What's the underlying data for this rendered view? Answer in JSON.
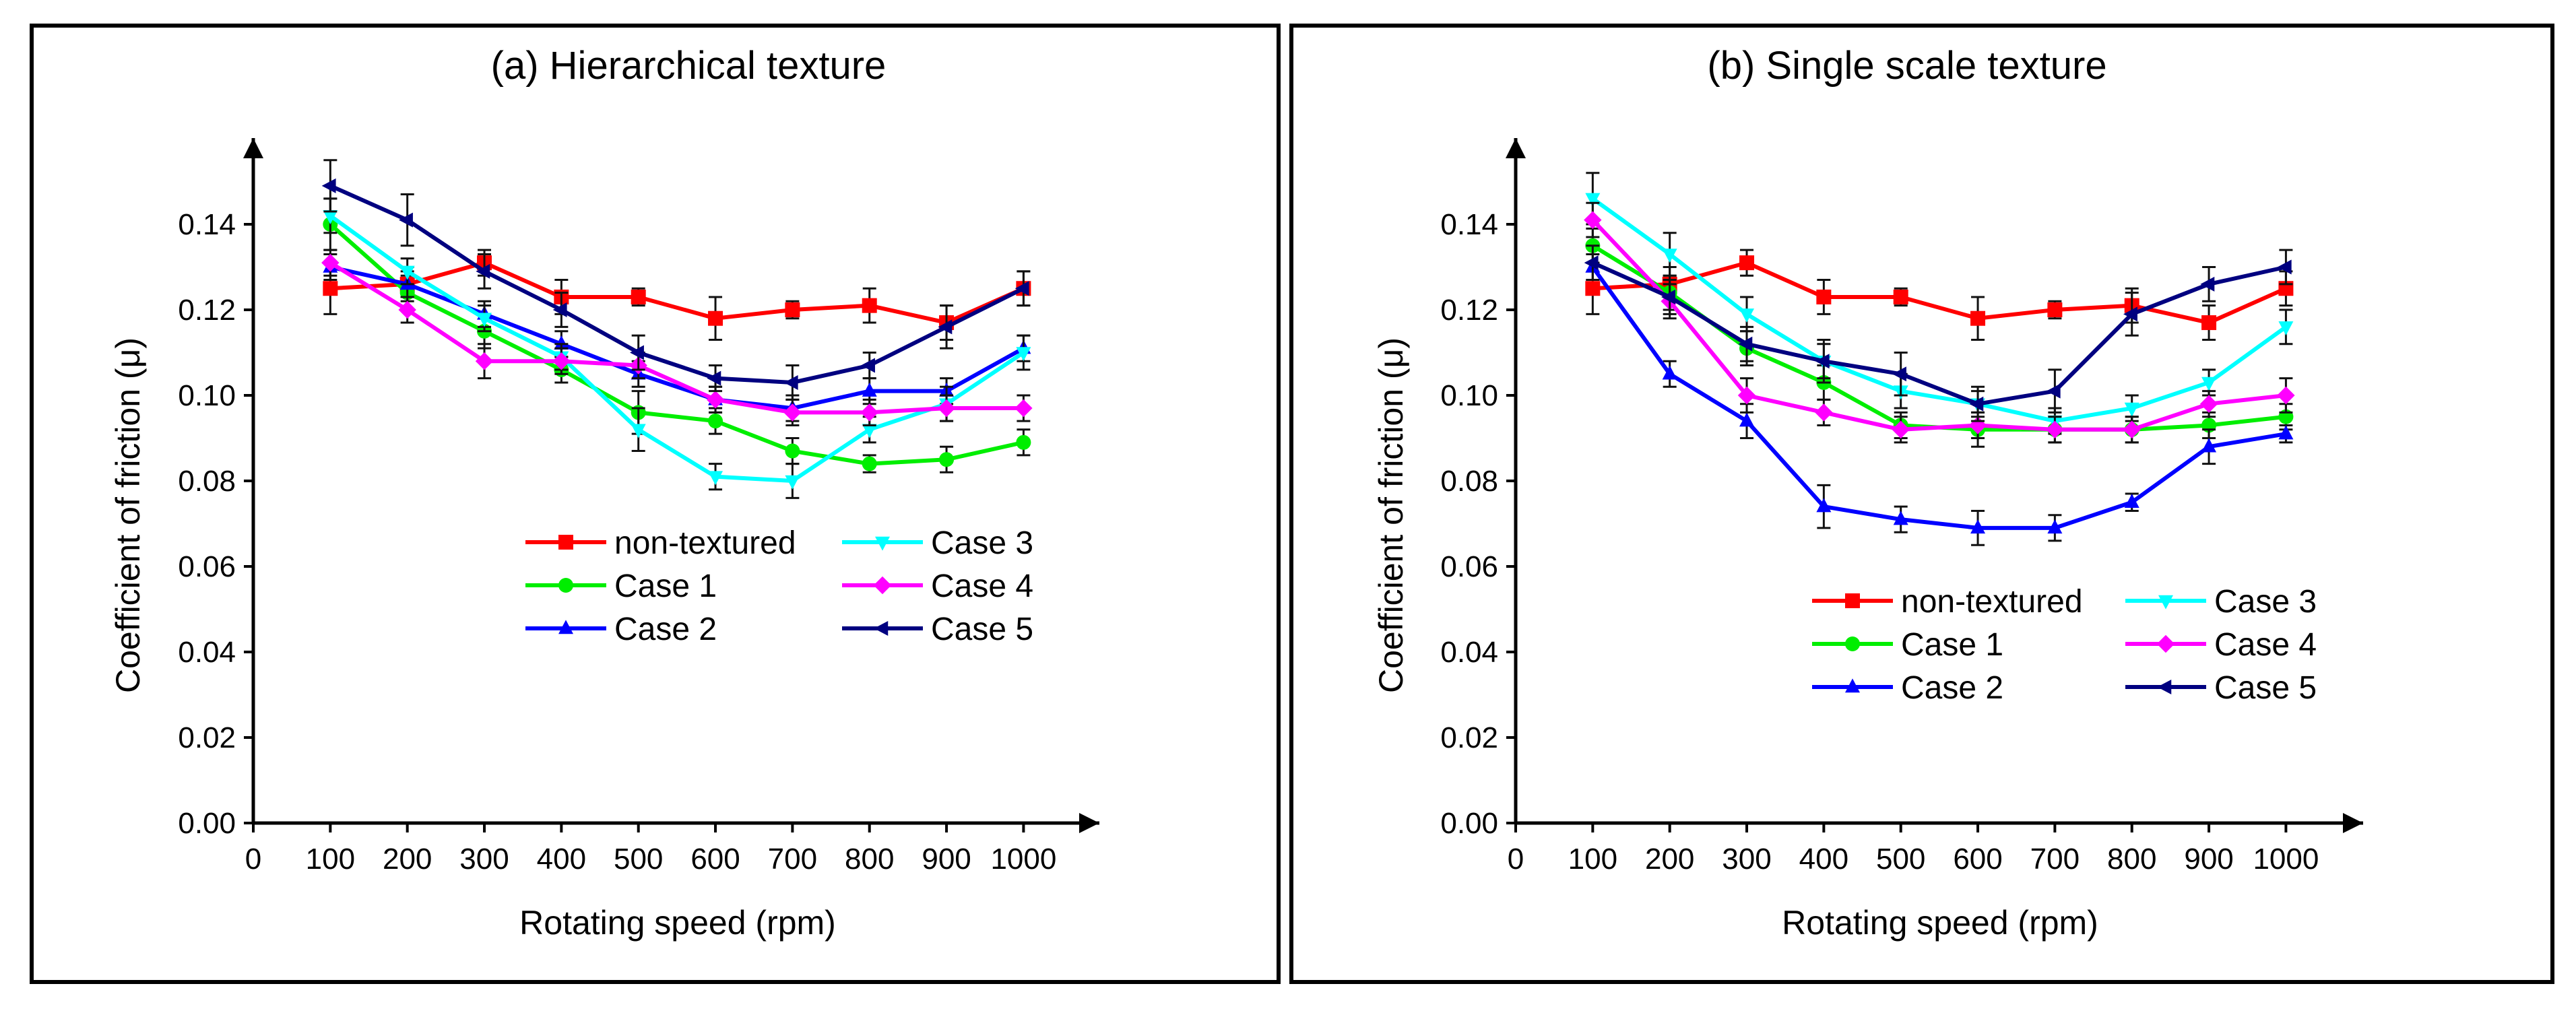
{
  "chart_data": [
    {
      "type": "line",
      "title": "(a) Hierarchical texture",
      "xlabel": "Rotating speed (rpm)",
      "ylabel": "Coefficient of friction (μ)",
      "xlim": [
        0,
        1100
      ],
      "ylim": [
        0.0,
        0.155
      ],
      "xticks": [
        "0",
        "100",
        "200",
        "300",
        "400",
        "500",
        "600",
        "700",
        "800",
        "900",
        "1000"
      ],
      "yticks": [
        "0.00",
        "0.02",
        "0.04",
        "0.06",
        "0.08",
        "0.10",
        "0.12",
        "0.14"
      ],
      "x": [
        100,
        200,
        300,
        400,
        500,
        600,
        700,
        800,
        900,
        1000
      ],
      "legend_position": "center-right",
      "series": [
        {
          "name": "non-textured",
          "color": "#ff0000",
          "marker": "square",
          "values": [
            0.125,
            0.126,
            0.131,
            0.123,
            0.123,
            0.118,
            0.12,
            0.121,
            0.117,
            0.125
          ],
          "errors": [
            0.006,
            0.004,
            0.003,
            0.004,
            0.002,
            0.005,
            0.002,
            0.004,
            0.004,
            0.004
          ]
        },
        {
          "name": "Case 1",
          "color": "#00ee00",
          "marker": "circle",
          "values": [
            0.14,
            0.124,
            0.115,
            0.106,
            0.096,
            0.094,
            0.087,
            0.084,
            0.085,
            0.089
          ],
          "errors": [
            0.006,
            0.004,
            0.004,
            0.003,
            0.005,
            0.003,
            0.003,
            0.002,
            0.003,
            0.003
          ]
        },
        {
          "name": "Case 2",
          "color": "#0000ff",
          "marker": "triangle-up",
          "values": [
            0.13,
            0.126,
            0.119,
            0.112,
            0.105,
            0.099,
            0.097,
            0.101,
            0.101,
            0.111
          ],
          "errors": [
            0.003,
            0.003,
            0.003,
            0.003,
            0.003,
            0.003,
            0.003,
            0.003,
            0.003,
            0.003
          ]
        },
        {
          "name": "Case 3",
          "color": "#00ffff",
          "marker": "triangle-down",
          "values": [
            0.142,
            0.129,
            0.118,
            0.109,
            0.092,
            0.081,
            0.08,
            0.092,
            0.098,
            0.11
          ],
          "errors": [
            0.004,
            0.003,
            0.003,
            0.003,
            0.005,
            0.003,
            0.004,
            0.003,
            0.004,
            0.004
          ]
        },
        {
          "name": "Case 4",
          "color": "#ff00ff",
          "marker": "diamond",
          "values": [
            0.131,
            0.12,
            0.108,
            0.108,
            0.107,
            0.099,
            0.096,
            0.096,
            0.097,
            0.097
          ],
          "errors": [
            0.003,
            0.003,
            0.004,
            0.003,
            0.003,
            0.003,
            0.003,
            0.003,
            0.003,
            0.003
          ]
        },
        {
          "name": "Case 5",
          "color": "#000080",
          "marker": "triangle-left",
          "values": [
            0.149,
            0.141,
            0.129,
            0.12,
            0.11,
            0.104,
            0.103,
            0.107,
            0.116,
            0.125
          ],
          "errors": [
            0.006,
            0.006,
            0.004,
            0.004,
            0.004,
            0.003,
            0.004,
            0.003,
            0.005,
            0.004
          ]
        }
      ]
    },
    {
      "type": "line",
      "title": "(b) Single scale texture",
      "xlabel": "Rotating speed (rpm)",
      "ylabel": "Coefficient of friction (μ)",
      "xlim": [
        0,
        1100
      ],
      "ylim": [
        0.0,
        0.155
      ],
      "xticks": [
        "0",
        "100",
        "200",
        "300",
        "400",
        "500",
        "600",
        "700",
        "800",
        "900",
        "1000"
      ],
      "yticks": [
        "0.00",
        "0.02",
        "0.04",
        "0.06",
        "0.08",
        "0.10",
        "0.12",
        "0.14"
      ],
      "x": [
        100,
        200,
        300,
        400,
        500,
        600,
        700,
        800,
        900,
        1000
      ],
      "legend_position": "lower-center",
      "series": [
        {
          "name": "non-textured",
          "color": "#ff0000",
          "marker": "square",
          "values": [
            0.125,
            0.126,
            0.131,
            0.123,
            0.123,
            0.118,
            0.12,
            0.121,
            0.117,
            0.125
          ],
          "errors": [
            0.006,
            0.004,
            0.003,
            0.004,
            0.002,
            0.005,
            0.002,
            0.004,
            0.004,
            0.004
          ]
        },
        {
          "name": "Case 1",
          "color": "#00ee00",
          "marker": "circle",
          "values": [
            0.135,
            0.124,
            0.111,
            0.103,
            0.093,
            0.092,
            0.092,
            0.092,
            0.093,
            0.095
          ],
          "errors": [
            0.004,
            0.004,
            0.004,
            0.004,
            0.003,
            0.004,
            0.003,
            0.003,
            0.003,
            0.003
          ]
        },
        {
          "name": "Case 2",
          "color": "#0000ff",
          "marker": "triangle-up",
          "values": [
            0.13,
            0.105,
            0.094,
            0.074,
            0.071,
            0.069,
            0.069,
            0.075,
            0.088,
            0.091
          ],
          "errors": [
            0.003,
            0.003,
            0.004,
            0.005,
            0.003,
            0.004,
            0.003,
            0.002,
            0.004,
            0.002
          ]
        },
        {
          "name": "Case 3",
          "color": "#00ffff",
          "marker": "triangle-down",
          "values": [
            0.146,
            0.133,
            0.119,
            0.108,
            0.101,
            0.098,
            0.094,
            0.097,
            0.103,
            0.116
          ],
          "errors": [
            0.006,
            0.005,
            0.004,
            0.004,
            0.004,
            0.003,
            0.003,
            0.003,
            0.003,
            0.004
          ]
        },
        {
          "name": "Case 4",
          "color": "#ff00ff",
          "marker": "diamond",
          "values": [
            0.141,
            0.122,
            0.1,
            0.096,
            0.092,
            0.093,
            0.092,
            0.092,
            0.098,
            0.1
          ],
          "errors": [
            0.004,
            0.004,
            0.004,
            0.003,
            0.003,
            0.003,
            0.003,
            0.003,
            0.003,
            0.004
          ]
        },
        {
          "name": "Case 5",
          "color": "#000080",
          "marker": "triangle-left",
          "values": [
            0.131,
            0.123,
            0.112,
            0.108,
            0.105,
            0.098,
            0.101,
            0.119,
            0.126,
            0.13
          ],
          "errors": [
            0.004,
            0.004,
            0.004,
            0.005,
            0.005,
            0.004,
            0.005,
            0.005,
            0.004,
            0.004
          ]
        }
      ]
    }
  ]
}
